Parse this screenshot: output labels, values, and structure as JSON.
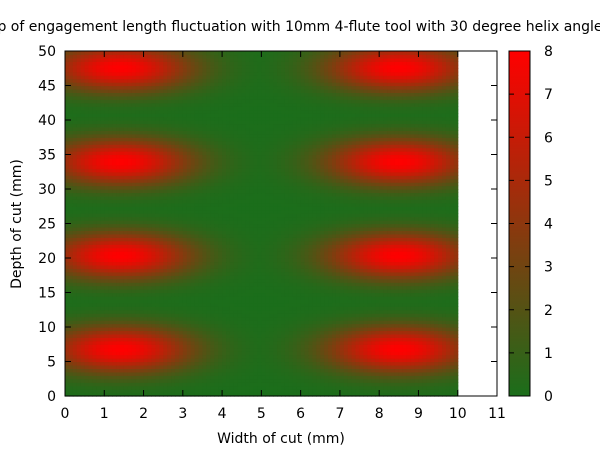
{
  "chart_data": {
    "type": "heatmap",
    "title": "p of engagement length fluctuation with 10mm 4-flute tool with 30 degree helix angle",
    "xlabel": "Width of cut (mm)",
    "ylabel": "Depth of cut (mm)",
    "xlim": [
      0,
      11
    ],
    "ylim": [
      0,
      50
    ],
    "x_ticks": [
      "0",
      "1",
      "2",
      "3",
      "4",
      "5",
      "6",
      "7",
      "8",
      "9",
      "10",
      "11"
    ],
    "y_ticks": [
      "0",
      "5",
      "10",
      "15",
      "20",
      "25",
      "30",
      "35",
      "40",
      "45",
      "50"
    ],
    "data_x_range": [
      0,
      10
    ],
    "data_y_range": [
      0,
      50
    ],
    "color_scale": {
      "min": 0,
      "max": 8,
      "ticks": [
        "0",
        "1",
        "2",
        "3",
        "4",
        "5",
        "6",
        "7",
        "8"
      ],
      "low_color": "#1b6e1b",
      "high_color": "#ff0000"
    },
    "hotspots_x": [
      1.4,
      8.5
    ],
    "hotspots_y": [
      6.8,
      20.4,
      34.0,
      47.6
    ],
    "peak_value": 8,
    "grid": false
  }
}
